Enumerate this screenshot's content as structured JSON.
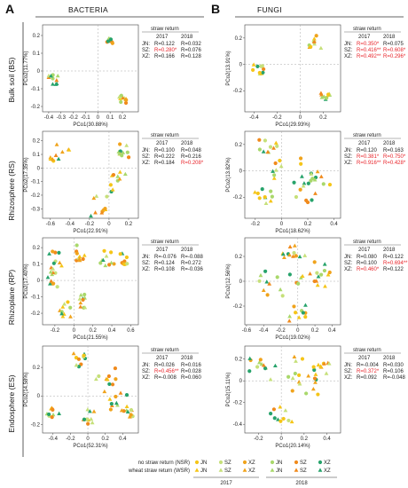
{
  "panel_letters": [
    "A",
    "B"
  ],
  "column_titles": [
    "BACTERIA",
    "FUNGI"
  ],
  "row_labels": [
    "Bulk soil (BS)",
    "Rhizosphere (RS)",
    "Rhizoplane (RP)",
    "Endosphere (ES)"
  ],
  "stats_title": "straw return",
  "stats_years": [
    "2017",
    "2018"
  ],
  "colors": {
    "JN_2017": "#f5c518",
    "SZ_2017": "#c6e07a",
    "XZ_2017": "#f0a31c",
    "JN_2018": "#a9d86b",
    "SZ_2018": "#f08a1c",
    "XZ_2018": "#27a36b",
    "significant": "#e8252b"
  },
  "legend": {
    "rows": [
      "no straw return (NSR)",
      "wheat straw return (WSR)"
    ],
    "groups": [
      "JN",
      "SZ",
      "XZ",
      "JN",
      "SZ",
      "XZ"
    ],
    "years": [
      "2017",
      "2018"
    ]
  },
  "chart_data": [
    {
      "type": "scatter",
      "domain": "bacteria",
      "row": "Bulk soil (BS)",
      "xlabel": "PCo1(30.88%)",
      "ylabel": "PCo2(11.77%)",
      "xlim": [
        -0.45,
        0.33
      ],
      "ylim": [
        -0.23,
        0.26
      ],
      "xticks": [
        "-0.4",
        "-0.3",
        "-0.2",
        "-0.1",
        "0",
        "0.1",
        "0.2"
      ],
      "xtickv": [
        -0.4,
        -0.3,
        -0.2,
        -0.1,
        0,
        0.1,
        0.2
      ],
      "yticks": [
        "0.2",
        "0.1",
        "0",
        "-0.1",
        "-0.2"
      ],
      "ytickv": [
        0.2,
        0.1,
        0,
        -0.1,
        -0.2
      ],
      "clusters": [
        [
          -0.36,
          -0.05,
          0.04
        ],
        [
          0.1,
          0.16,
          0.03
        ],
        [
          0.2,
          -0.16,
          0.03
        ]
      ],
      "stats": [
        {
          "site": "JN:",
          "r2017": "R=0.122",
          "r2018": "R=0.032",
          "sig2017": false,
          "sig2018": false
        },
        {
          "site": "SZ:",
          "r2017": "R=0.280*",
          "r2018": "R=0.076",
          "sig2017": true,
          "sig2018": false
        },
        {
          "site": "XZ:",
          "r2017": "R=0.166",
          "r2018": "R=0.128",
          "sig2017": false,
          "sig2018": false
        }
      ]
    },
    {
      "type": "scatter",
      "domain": "fungi",
      "row": "Bulk soil (BS)",
      "xlabel": "PCo1(29.93%)",
      "ylabel": "PCo2(13.91%)",
      "xlim": [
        -0.48,
        0.35
      ],
      "ylim": [
        -0.36,
        0.3
      ],
      "xticks": [
        "-0.4",
        "-0.2",
        "0",
        "0.2"
      ],
      "xtickv": [
        -0.4,
        -0.2,
        0,
        0.2
      ],
      "yticks": [
        "0.2",
        "0",
        "-0.2"
      ],
      "ytickv": [
        0.2,
        0,
        -0.2
      ],
      "clusters": [
        [
          -0.36,
          -0.04,
          0.05
        ],
        [
          0.12,
          0.17,
          0.06
        ],
        [
          0.22,
          -0.25,
          0.04
        ]
      ],
      "stats": [
        {
          "site": "JN:",
          "r2017": "R=0.350*",
          "r2018": "R=0.075",
          "sig2017": true,
          "sig2018": false
        },
        {
          "site": "SZ:",
          "r2017": "R=0.416**",
          "r2018": "R=0.608*",
          "sig2017": true,
          "sig2018": true
        },
        {
          "site": "XZ:",
          "r2017": "R=0.492**",
          "r2018": "R=0.296*",
          "sig2017": true,
          "sig2018": true
        }
      ]
    },
    {
      "type": "scatter",
      "domain": "bacteria",
      "row": "Rhizosphere (RS)",
      "xlabel": "PCo1(22.91%)",
      "ylabel": "PCo2(17.35%)",
      "xlim": [
        -0.68,
        0.3
      ],
      "ylim": [
        -0.37,
        0.27
      ],
      "xticks": [
        "-0.6",
        "-0.4",
        "-0.2",
        "0",
        "0.2"
      ],
      "xtickv": [
        -0.6,
        -0.4,
        -0.2,
        0,
        0.2
      ],
      "yticks": [
        "0.2",
        "0.1",
        "0",
        "-0.1",
        "-0.2",
        "-0.3"
      ],
      "ytickv": [
        0.2,
        0.1,
        0,
        -0.1,
        -0.2,
        -0.3
      ],
      "clusters": [
        [
          -0.5,
          0.12,
          0.1
        ],
        [
          0.15,
          0.13,
          0.07
        ],
        [
          -0.1,
          -0.28,
          0.1
        ],
        [
          0.1,
          -0.1,
          0.1
        ]
      ],
      "stats": [
        {
          "site": "JN:",
          "r2017": "R=0.100",
          "r2018": "R=0.048",
          "sig2017": false,
          "sig2018": false
        },
        {
          "site": "SZ:",
          "r2017": "R=0.222",
          "r2018": "R=0.216",
          "sig2017": false,
          "sig2018": false
        },
        {
          "site": "XZ:",
          "r2017": "R=0.184",
          "r2018": "R=0.208*",
          "sig2017": false,
          "sig2018": true
        }
      ]
    },
    {
      "type": "scatter",
      "domain": "fungi",
      "row": "Rhizosphere (RS)",
      "xlabel": "PCo1(18.62%)",
      "ylabel": "PCo2(13.82%)",
      "xlim": [
        -0.28,
        0.45
      ],
      "ylim": [
        -0.36,
        0.3
      ],
      "xticks": [
        "-0.2",
        "0",
        "0.2",
        "0.4"
      ],
      "xtickv": [
        -0.2,
        0,
        0.2,
        0.4
      ],
      "yticks": [
        "0.2",
        "0",
        "-0.2"
      ],
      "ytickv": [
        0.2,
        0,
        -0.2
      ],
      "clusters": [
        [
          -0.1,
          0.18,
          0.07
        ],
        [
          0.05,
          0.02,
          0.12
        ],
        [
          0.15,
          -0.15,
          0.12
        ],
        [
          -0.15,
          -0.2,
          0.08
        ],
        [
          0.3,
          -0.05,
          0.08
        ]
      ],
      "stats": [
        {
          "site": "JN:",
          "r2017": "R=0.120",
          "r2018": "R=0.163",
          "sig2017": false,
          "sig2018": false
        },
        {
          "site": "SZ:",
          "r2017": "R=0.381*",
          "r2018": "R=0.750*",
          "sig2017": true,
          "sig2018": true
        },
        {
          "site": "XZ:",
          "r2017": "R=0.916**",
          "r2018": "R=0.428*",
          "sig2017": true,
          "sig2018": true
        }
      ]
    },
    {
      "type": "scatter",
      "domain": "bacteria",
      "row": "Rhizoplane (RP)",
      "xlabel": "PCo1(21.55%)",
      "ylabel": "PCo2(17.40%)",
      "xlim": [
        -0.33,
        0.68
      ],
      "ylim": [
        -0.27,
        0.26
      ],
      "xticks": [
        "-0.2",
        "0",
        "0.2",
        "0.4",
        "0.6"
      ],
      "xtickv": [
        -0.2,
        0,
        0.2,
        0.4,
        0.6
      ],
      "yticks": [
        "0.2",
        "0.1",
        "0",
        "-0.1",
        "-0.2"
      ],
      "ytickv": [
        0.2,
        0.1,
        0,
        -0.1,
        -0.2
      ],
      "clusters": [
        [
          -0.18,
          0.13,
          0.08
        ],
        [
          0.08,
          0.17,
          0.06
        ],
        [
          0.35,
          0.13,
          0.08
        ],
        [
          0.53,
          0.13,
          0.05
        ],
        [
          -0.1,
          -0.17,
          0.07
        ],
        [
          0.12,
          -0.12,
          0.06
        ],
        [
          -0.22,
          0.0,
          0.07
        ]
      ],
      "stats": [
        {
          "site": "JN:",
          "r2017": "R=-0.076",
          "r2018": "R=-0.088",
          "sig2017": false,
          "sig2018": false
        },
        {
          "site": "SZ:",
          "r2017": "R=0.124",
          "r2018": "R=0.272",
          "sig2017": false,
          "sig2018": false
        },
        {
          "site": "XZ:",
          "r2017": "R=0.108",
          "r2018": "R=-0.036",
          "sig2017": false,
          "sig2018": false
        }
      ]
    },
    {
      "type": "scatter",
      "domain": "fungi",
      "row": "Rhizoplane (RP)",
      "xlabel": "PCo1(19.02%)",
      "ylabel": "PCo2(12.56%)",
      "xlim": [
        -0.62,
        0.5
      ],
      "ylim": [
        -0.35,
        0.35
      ],
      "xticks": [
        "-0.6",
        "-0.4",
        "-0.2",
        "0",
        "0.2",
        "0.4"
      ],
      "xtickv": [
        -0.6,
        -0.4,
        -0.2,
        0,
        0.2,
        0.4
      ],
      "yticks": [
        "0.2",
        "0",
        "-0.2"
      ],
      "ytickv": [
        0.2,
        0,
        -0.2
      ],
      "clusters": [
        [
          -0.3,
          0.0,
          0.15
        ],
        [
          0.05,
          0.1,
          0.15
        ],
        [
          0.3,
          0.05,
          0.12
        ],
        [
          0.0,
          -0.25,
          0.12
        ],
        [
          -0.1,
          0.25,
          0.08
        ]
      ],
      "stats": [
        {
          "site": "JN:",
          "r2017": "R=0.080",
          "r2018": "R=0.122",
          "sig2017": false,
          "sig2018": false
        },
        {
          "site": "SZ:",
          "r2017": "R=0.100",
          "r2018": "R=0.694**",
          "sig2017": false,
          "sig2018": true
        },
        {
          "site": "XZ:",
          "r2017": "R=0.460*",
          "r2018": "R=0.122",
          "sig2017": true,
          "sig2018": false
        }
      ]
    },
    {
      "type": "scatter",
      "domain": "bacteria",
      "row": "Endosphere (ES)",
      "xlabel": "PCo1(52.31%)",
      "ylabel": "PCo2(14.58%)",
      "xlim": [
        -0.52,
        0.58
      ],
      "ylim": [
        -0.26,
        0.35
      ],
      "xticks": [
        "-0.4",
        "-0.2",
        "0",
        "0.2",
        "0.4"
      ],
      "xtickv": [
        -0.4,
        -0.2,
        0,
        0.2,
        0.4
      ],
      "yticks": [
        "0.2",
        "0",
        "-0.2"
      ],
      "ytickv": [
        0.2,
        0,
        -0.2
      ],
      "clusters": [
        [
          -0.4,
          -0.1,
          0.07
        ],
        [
          -0.1,
          0.25,
          0.07
        ],
        [
          0.2,
          0.1,
          0.12
        ],
        [
          0.35,
          -0.05,
          0.1
        ],
        [
          0.45,
          -0.1,
          0.07
        ],
        [
          0.0,
          -0.15,
          0.08
        ]
      ],
      "stats": [
        {
          "site": "JN:",
          "r2017": "R=0.026",
          "r2018": "R=0.016",
          "sig2017": false,
          "sig2018": false
        },
        {
          "site": "SZ:",
          "r2017": "R=0.456**",
          "r2018": "R=0.028",
          "sig2017": true,
          "sig2018": false
        },
        {
          "site": "XZ:",
          "r2017": "R=-0.008",
          "r2018": "R=0.060",
          "sig2017": false,
          "sig2018": false
        }
      ]
    },
    {
      "type": "scatter",
      "domain": "fungi",
      "row": "Endosphere (ES)",
      "xlabel": "PCo1(20.14%)",
      "ylabel": "PCo2(15.11%)",
      "xlim": [
        -0.32,
        0.52
      ],
      "ylim": [
        -0.48,
        0.32
      ],
      "xticks": [
        "-0.2",
        "0",
        "0.2",
        "0.4"
      ],
      "xtickv": [
        -0.2,
        0,
        0.2,
        0.4
      ],
      "yticks": [
        "0.2",
        "0",
        "-0.2",
        "-0.4"
      ],
      "ytickv": [
        0.2,
        0,
        -0.2,
        -0.4
      ],
      "clusters": [
        [
          -0.2,
          0.15,
          0.08
        ],
        [
          0.05,
          0.1,
          0.15
        ],
        [
          0.2,
          -0.05,
          0.15
        ],
        [
          0.0,
          -0.3,
          0.1
        ],
        [
          0.35,
          0.1,
          0.08
        ]
      ],
      "stats": [
        {
          "site": "JN:",
          "r2017": "R=-0.004",
          "r2018": "R=0.030",
          "sig2017": false,
          "sig2018": false
        },
        {
          "site": "SZ:",
          "r2017": "R=0.372*",
          "r2018": "R=0.106",
          "sig2017": true,
          "sig2018": false
        },
        {
          "site": "XZ:",
          "r2017": "R=0.092",
          "r2018": "R=-0.048",
          "sig2017": false,
          "sig2018": false
        }
      ]
    }
  ]
}
